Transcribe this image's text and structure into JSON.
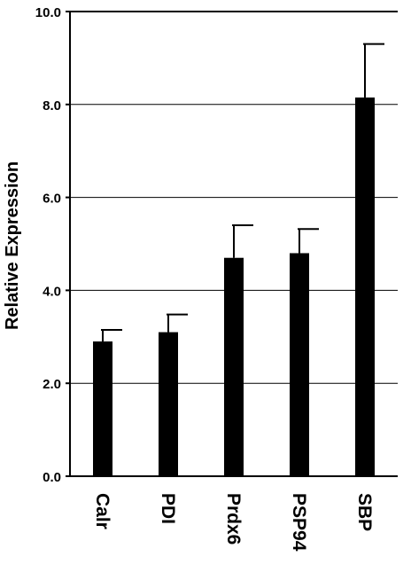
{
  "chart_data": {
    "type": "bar",
    "title": "",
    "xlabel": "",
    "ylabel": "Relative Expression",
    "categories": [
      "Calr",
      "PDI",
      "Prdx6",
      "PSP94",
      "SBP"
    ],
    "values": [
      2.9,
      3.1,
      4.7,
      4.8,
      8.15
    ],
    "error_upper": [
      0.25,
      0.38,
      0.7,
      0.52,
      1.15
    ],
    "ylim": [
      0,
      10
    ],
    "yticks": [
      0,
      2,
      4,
      6,
      8,
      10
    ],
    "ytick_labels": [
      "0.0",
      "2.0",
      "4.0",
      "6.0",
      "8.0",
      "10.0"
    ],
    "grid": "horizontal",
    "legend": "none",
    "colors": {
      "bar": "#000000",
      "grid": "#000000",
      "axis": "#000000",
      "background": "#ffffff"
    }
  }
}
